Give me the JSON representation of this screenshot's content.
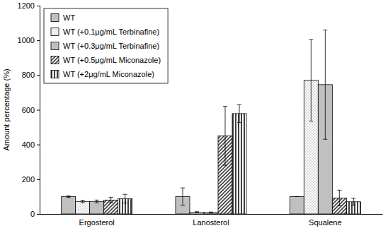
{
  "chart_data": {
    "type": "bar",
    "y_label": "Amount percentage (%)",
    "categories": [
      "Ergosterol",
      "Lanosterol",
      "Squalene"
    ],
    "series": [
      {
        "name": "WT",
        "color": "#c0c0c0",
        "values": [
          100,
          100,
          100
        ],
        "errors": [
          5,
          50,
          0
        ]
      },
      {
        "name": "WT (+0.1μg/mL Terbinafine)",
        "color": "#a0a0a0",
        "values": [
          72,
          10,
          770
        ],
        "errors": [
          7,
          3,
          235
        ]
      },
      {
        "name": "WT (+0.3μg/mL Terbinafine)",
        "color": "#c0c0c0",
        "values": [
          72,
          8,
          745
        ],
        "errors": [
          8,
          3,
          315
        ]
      },
      {
        "name": "WT (+0.5μg/mL Miconazole)",
        "color": "#404040",
        "values": [
          80,
          450,
          92
        ],
        "errors": [
          15,
          170,
          45
        ]
      },
      {
        "name": "WT (+2μg/mL Miconazole)",
        "color": "#404040",
        "values": [
          88,
          578,
          70
        ],
        "errors": [
          25,
          52,
          20
        ]
      }
    ],
    "ylim": [
      0,
      1200
    ],
    "yticks": [
      0,
      200,
      400,
      600,
      800,
      1000,
      1200
    ],
    "grid": false,
    "legend": "upper left"
  }
}
